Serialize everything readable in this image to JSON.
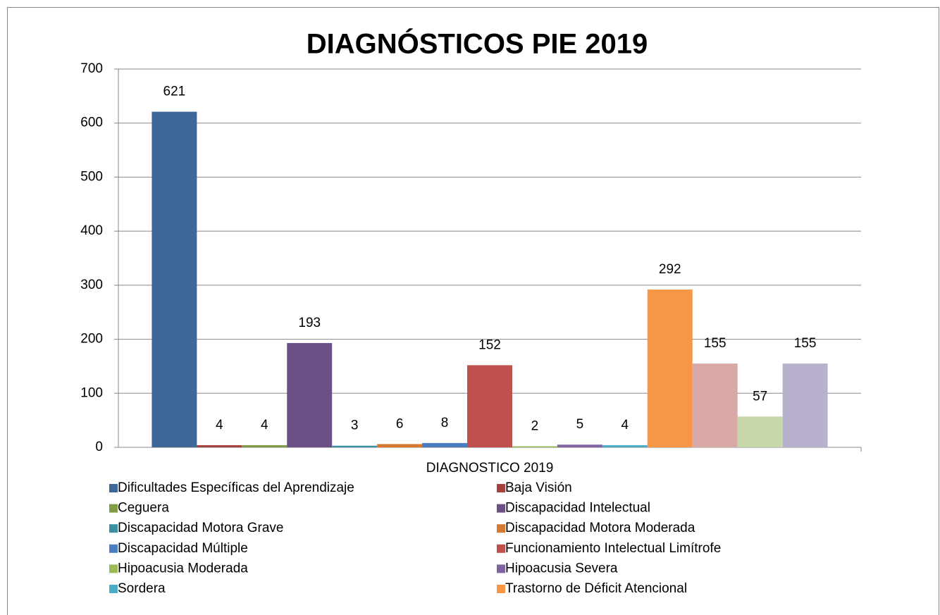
{
  "chart_data": {
    "type": "bar",
    "title": "DIAGNÓSTICOS PIE 2019",
    "categories": [
      "DIAGNOSTICO 2019"
    ],
    "ylim": [
      0,
      700
    ],
    "yticks": [
      0,
      100,
      200,
      300,
      400,
      500,
      600,
      700
    ],
    "grid": true,
    "legend": "bottom",
    "series": [
      {
        "name": "Dificultades Específicas del Aprendizaje",
        "color": "#3f6899",
        "values": [
          621
        ]
      },
      {
        "name": "Baja Visión",
        "color": "#a5403d",
        "values": [
          4
        ]
      },
      {
        "name": "Ceguera",
        "color": "#7f9b44",
        "values": [
          4
        ]
      },
      {
        "name": "Discapacidad Intelectual",
        "color": "#6a5086",
        "values": [
          193
        ]
      },
      {
        "name": "Discapacidad Motora Grave",
        "color": "#3b8fa3",
        "values": [
          3
        ]
      },
      {
        "name": "Discapacidad Motora Moderada",
        "color": "#d7782f",
        "values": [
          6
        ]
      },
      {
        "name": "Discapacidad Múltiple",
        "color": "#4a7ec0",
        "values": [
          8
        ]
      },
      {
        "name": "Funcionamiento Intelectual Limítrofe",
        "color": "#c0504d",
        "values": [
          152
        ]
      },
      {
        "name": "Hipoacusia Moderada",
        "color": "#9bbb59",
        "values": [
          2
        ]
      },
      {
        "name": "Hipoacusia Severa",
        "color": "#8064a2",
        "values": [
          5
        ]
      },
      {
        "name": "Sordera",
        "color": "#4bacc6",
        "values": [
          4
        ]
      },
      {
        "name": "Trastorno de Déficit Atencional",
        "color": "#f79646",
        "values": [
          292
        ]
      },
      {
        "color": "#d9a9a8",
        "values": [
          155
        ]
      },
      {
        "color": "#c6d7a9",
        "values": [
          57
        ]
      },
      {
        "color": "#b8b0cd",
        "values": [
          155
        ]
      }
    ]
  }
}
